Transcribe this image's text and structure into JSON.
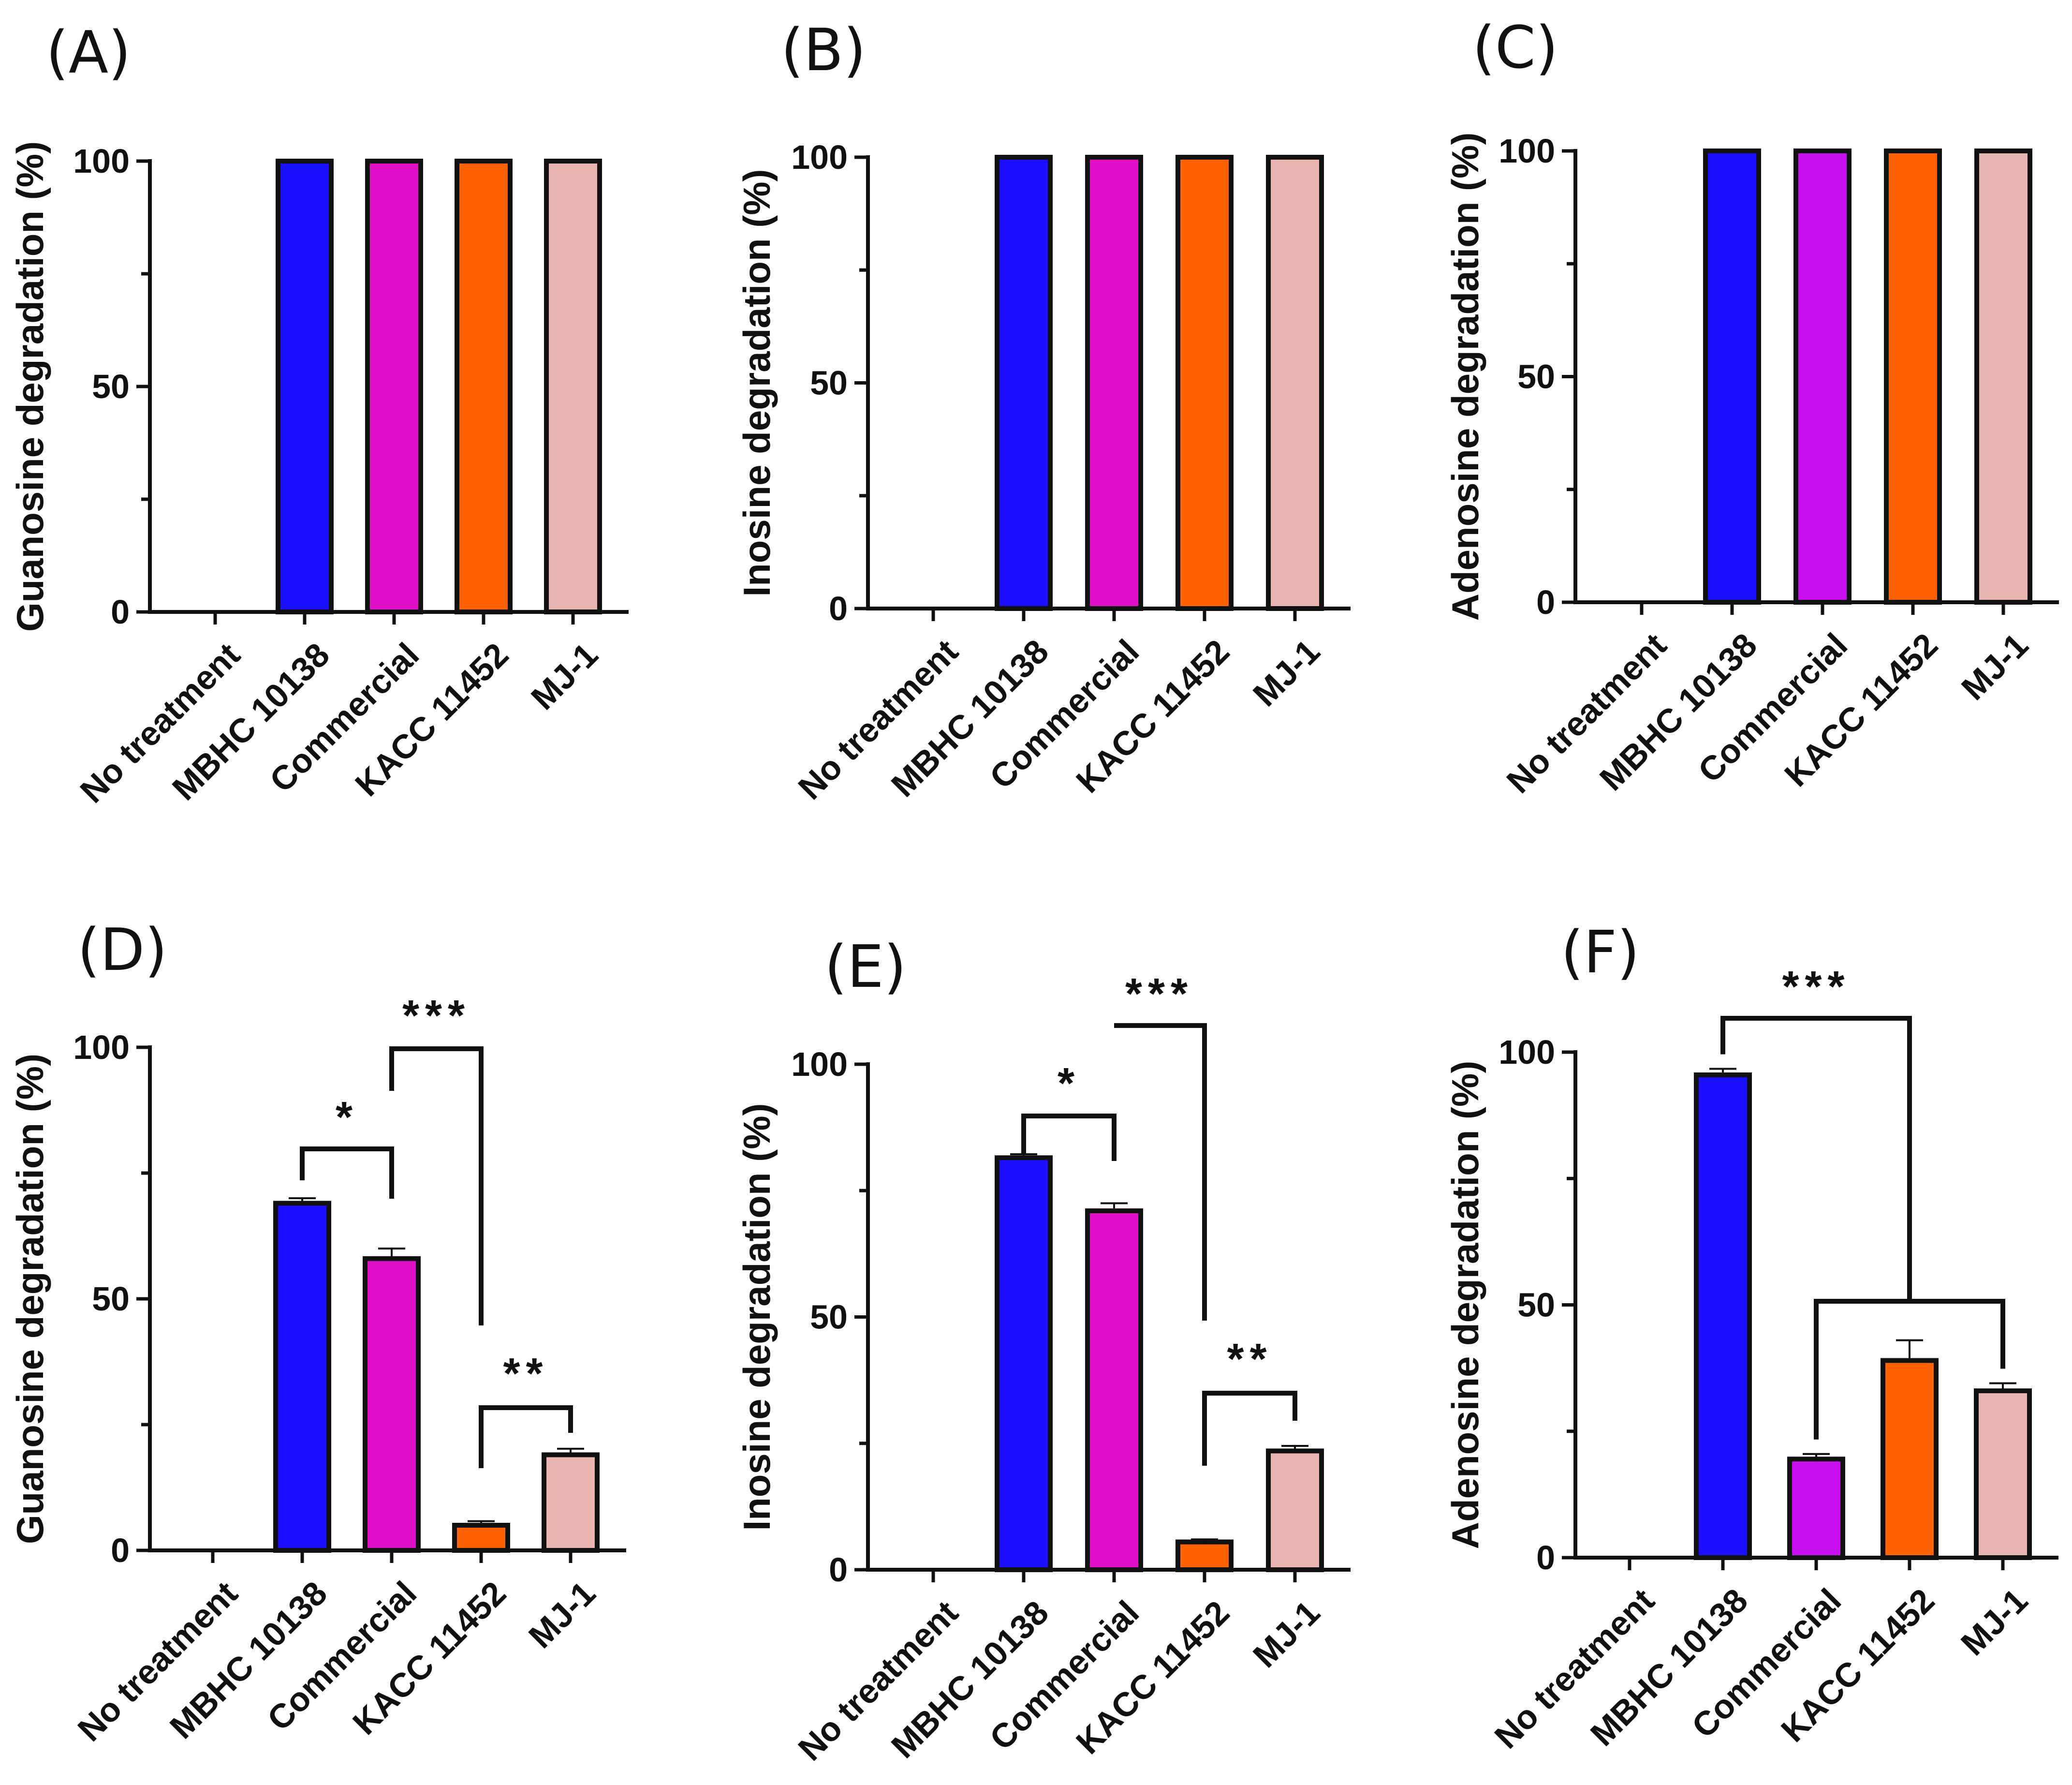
{
  "chart_data": [
    {
      "panel": "(A)",
      "type": "bar",
      "title": "",
      "xlabel": "",
      "ylabel": "Guanosine degradation (%)",
      "ylim": [
        0,
        100
      ],
      "yticks": [
        0,
        50,
        100
      ],
      "categories": [
        "No treatment",
        "MBHC 10138",
        "Commercial",
        "KACC 11452",
        "MJ-1"
      ],
      "values": [
        0,
        100,
        100,
        100,
        100
      ],
      "errors": [
        0,
        0,
        0,
        0,
        0
      ],
      "colors": [
        "#ffffff",
        "#1a10ff",
        "#e010c8",
        "#ff6200",
        "#e8b4b0"
      ],
      "significance": []
    },
    {
      "panel": "(B)",
      "type": "bar",
      "title": "",
      "xlabel": "",
      "ylabel": "Inosine degradation (%)",
      "ylim": [
        0,
        100
      ],
      "yticks": [
        0,
        50,
        100
      ],
      "categories": [
        "No treatment",
        "MBHC 10138",
        "Commercial",
        "KACC 11452",
        "MJ-1"
      ],
      "values": [
        0,
        100,
        100,
        100,
        100
      ],
      "errors": [
        0,
        0,
        0,
        0,
        0
      ],
      "colors": [
        "#ffffff",
        "#1a10ff",
        "#e010c8",
        "#ff6200",
        "#e8b4b0"
      ],
      "significance": []
    },
    {
      "panel": "(C)",
      "type": "bar",
      "title": "",
      "xlabel": "",
      "ylabel": "Adenosine degradation (%)",
      "ylim": [
        0,
        100
      ],
      "yticks": [
        0,
        50,
        100
      ],
      "categories": [
        "No treatment",
        "MBHC 10138",
        "Commercial",
        "KACC 11452",
        "MJ-1"
      ],
      "values": [
        0,
        100,
        100,
        100,
        100
      ],
      "errors": [
        0,
        0,
        0,
        0,
        0
      ],
      "colors": [
        "#ffffff",
        "#1a10ff",
        "#c80ff0",
        "#ff6200",
        "#e8b4b0"
      ],
      "significance": []
    },
    {
      "panel": "(D)",
      "type": "bar",
      "title": "",
      "xlabel": "",
      "ylabel": "Guanosine degradation (%)",
      "ylim": [
        0,
        100
      ],
      "yticks": [
        0,
        50,
        100
      ],
      "categories": [
        "No treatment",
        "MBHC 10138",
        "Commercial",
        "KACC 11452",
        "MJ-1"
      ],
      "values": [
        0,
        69,
        58,
        5,
        19
      ],
      "errors": [
        0,
        1,
        2,
        0.8,
        1.2
      ],
      "colors": [
        "#ffffff",
        "#1a10ff",
        "#e010c8",
        "#ff6200",
        "#e8b4b0"
      ],
      "significance": [
        {
          "from": 1,
          "to": 2,
          "label": "*"
        },
        {
          "from": 2,
          "to": 3,
          "label": "***"
        },
        {
          "from": 3,
          "to": 4,
          "label": "**"
        }
      ]
    },
    {
      "panel": "(E)",
      "type": "bar",
      "title": "",
      "xlabel": "",
      "ylabel": "Inosine degradation (%)",
      "ylim": [
        0,
        100
      ],
      "yticks": [
        0,
        50,
        100
      ],
      "categories": [
        "No treatment",
        "MBHC 10138",
        "Commercial",
        "KACC 11452",
        "MJ-1"
      ],
      "values": [
        0,
        81.5,
        71,
        5.5,
        23.5
      ],
      "errors": [
        0,
        0.7,
        1.5,
        0.5,
        1
      ],
      "colors": [
        "#ffffff",
        "#1a10ff",
        "#e010c8",
        "#ff6200",
        "#e8b4b0"
      ],
      "significance": [
        {
          "from": 1,
          "to": 2,
          "label": "*"
        },
        {
          "from": 2,
          "to": 3,
          "label": "***"
        },
        {
          "from": 3,
          "to": 4,
          "label": "**"
        }
      ]
    },
    {
      "panel": "(F)",
      "type": "bar",
      "title": "",
      "xlabel": "",
      "ylabel": "Adenosine degradation (%)",
      "ylim": [
        0,
        100
      ],
      "yticks": [
        0,
        50,
        100
      ],
      "categories": [
        "No treatment",
        "MBHC 10138",
        "Commercial",
        "KACC 11452",
        "MJ-1"
      ],
      "values": [
        0,
        95.5,
        19.5,
        39,
        33
      ],
      "errors": [
        0,
        1.2,
        1,
        4,
        1.5
      ],
      "colors": [
        "#ffffff",
        "#1a10ff",
        "#c80ff0",
        "#ff6200",
        "#e8b4b0"
      ],
      "significance": [
        {
          "from": 1,
          "to": "group",
          "label": "***"
        },
        {
          "from": 2,
          "to": 4,
          "label": ""
        }
      ]
    }
  ]
}
